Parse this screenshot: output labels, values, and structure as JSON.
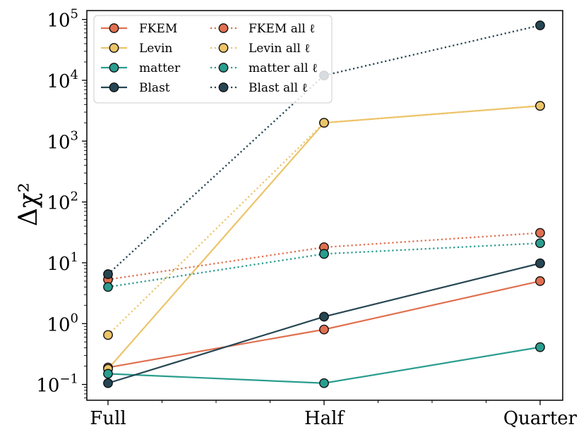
{
  "chart_data": {
    "type": "line",
    "title": "",
    "xlabel": "",
    "ylabel": "Δχ²",
    "yscale": "log",
    "ylim": [
      0.055,
      140000
    ],
    "categories": [
      "Full",
      "Half",
      "Quarter"
    ],
    "y_ticks": [
      {
        "value": 0.1,
        "base": "10",
        "exp": "−1"
      },
      {
        "value": 1,
        "base": "10",
        "exp": "0"
      },
      {
        "value": 10,
        "base": "10",
        "exp": "1"
      },
      {
        "value": 100,
        "base": "10",
        "exp": "2"
      },
      {
        "value": 1000,
        "base": "10",
        "exp": "3"
      },
      {
        "value": 10000,
        "base": "10",
        "exp": "4"
      },
      {
        "value": 100000,
        "base": "10",
        "exp": "5"
      }
    ],
    "legend_position": "top-left",
    "series": [
      {
        "name": "FKEM",
        "color": "#e07050",
        "style": "solid",
        "values": [
          0.19,
          0.8,
          5.0
        ]
      },
      {
        "name": "Levin",
        "color": "#ecc469",
        "style": "solid",
        "values": [
          0.18,
          2000,
          3800
        ]
      },
      {
        "name": "matter",
        "color": "#2a9d8f",
        "style": "solid",
        "values": [
          0.15,
          0.105,
          0.41
        ]
      },
      {
        "name": "Blast",
        "color": "#264653",
        "style": "solid",
        "values": [
          0.105,
          1.3,
          9.8
        ]
      },
      {
        "name": "FKEM all  ℓ",
        "color": "#e07050",
        "style": "dotted",
        "values": [
          5.3,
          18,
          31
        ]
      },
      {
        "name": "Levin all  ℓ",
        "color": "#ecc469",
        "style": "dotted",
        "values": [
          0.65,
          2000,
          3800
        ]
      },
      {
        "name": "matter all  ℓ",
        "color": "#2a9d8f",
        "style": "dotted",
        "values": [
          4.0,
          14,
          21
        ]
      },
      {
        "name": "Blast  all  ℓ",
        "color": "#264653",
        "style": "dotted",
        "values": [
          6.5,
          12000,
          80000
        ]
      }
    ]
  }
}
